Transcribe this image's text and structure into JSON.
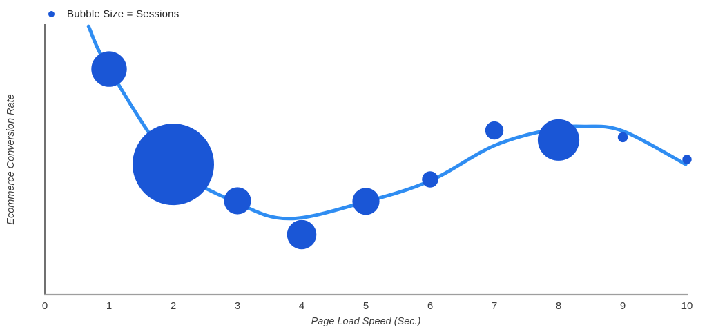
{
  "chart": {
    "legend": "Bubble Size = Sessions",
    "xlabel": "Page Load Speed (Sec.)",
    "ylabel": "Ecommerce Conversion Rate"
  },
  "chart_data": {
    "type": "scatter",
    "subtype": "bubble",
    "title": "",
    "legend_entries": [
      "Bubble Size = Sessions"
    ],
    "legend_position": "top-left",
    "xlabel": "Page Load Speed (Sec.)",
    "ylabel": "Ecommerce Conversion Rate",
    "xlim": [
      0,
      10
    ],
    "ylim": [
      0,
      100
    ],
    "grid": false,
    "x_ticks": [
      "0",
      "1",
      "2",
      "3",
      "4",
      "5",
      "6",
      "7",
      "8",
      "9",
      "10"
    ],
    "y_ticks": [],
    "bubbles": [
      {
        "x": 1,
        "conversion_rate_rel": 83.4,
        "sessions_rel": 19
      },
      {
        "x": 2,
        "conversion_rate_rel": 48.2,
        "sessions_rel": 100
      },
      {
        "x": 3,
        "conversion_rate_rel": 34.7,
        "sessions_rel": 11
      },
      {
        "x": 4,
        "conversion_rate_rel": 22.2,
        "sessions_rel": 13
      },
      {
        "x": 5,
        "conversion_rate_rel": 34.5,
        "sessions_rel": 11
      },
      {
        "x": 6,
        "conversion_rate_rel": 42.6,
        "sessions_rel": 4
      },
      {
        "x": 7,
        "conversion_rate_rel": 60.7,
        "sessions_rel": 5
      },
      {
        "x": 8,
        "conversion_rate_rel": 57.2,
        "sessions_rel": 26
      },
      {
        "x": 9,
        "conversion_rate_rel": 58.2,
        "sessions_rel": 1.5
      },
      {
        "x": 10,
        "conversion_rate_rel": 50.0,
        "sessions_rel": 1.3
      }
    ],
    "trend_curve": [
      [
        0.68,
        99.2
      ],
      [
        1,
        83.4
      ],
      [
        2,
        48.2
      ],
      [
        3,
        33.9
      ],
      [
        3.82,
        28.1
      ],
      [
        5,
        34.4
      ],
      [
        6,
        42.1
      ],
      [
        7,
        55.1
      ],
      [
        7.9,
        61.2
      ],
      [
        8.4,
        62.2
      ],
      [
        9,
        60.5
      ],
      [
        9.98,
        48.2
      ]
    ],
    "colors": {
      "bubble": "#1A56D6",
      "line": "#2F8DF2",
      "y_axis": "#4D4D4D",
      "x_axis": "#9E9E9E",
      "tick_text": "#3C3C3C",
      "legend_text": "#212121"
    }
  }
}
